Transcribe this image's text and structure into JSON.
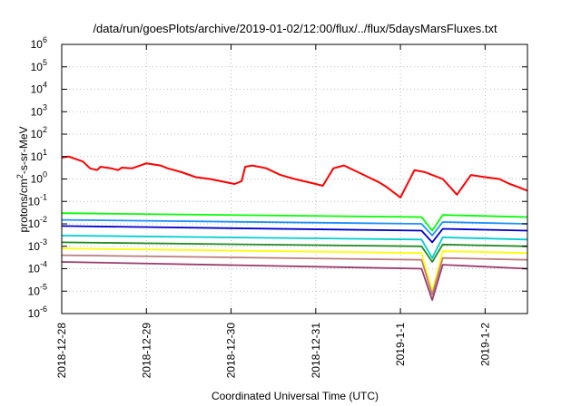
{
  "chart_data": {
    "type": "line",
    "title": "/data/run/goesPlots/archive/2019-01-02/12:00/flux/../flux/5daysMarsFluxes.txt",
    "xlabel": "Coordinated Universal Time (UTC)",
    "ylabel_parts": {
      "base": "protons/cm",
      "exp": "2",
      "rest": "-s-sr-MeV"
    },
    "y_scale": "log",
    "ylim": [
      1e-06,
      1000000.0
    ],
    "y_ticks": [
      {
        "base": "10",
        "exp": "-6",
        "value": 1e-06
      },
      {
        "base": "10",
        "exp": "-5",
        "value": 1e-05
      },
      {
        "base": "10",
        "exp": "-4",
        "value": 0.0001
      },
      {
        "base": "10",
        "exp": "-3",
        "value": 0.001
      },
      {
        "base": "10",
        "exp": "-2",
        "value": 0.01
      },
      {
        "base": "10",
        "exp": "-1",
        "value": 0.1
      },
      {
        "base": "10",
        "exp": "0",
        "value": 1
      },
      {
        "base": "10",
        "exp": "1",
        "value": 10
      },
      {
        "base": "10",
        "exp": "2",
        "value": 100
      },
      {
        "base": "10",
        "exp": "3",
        "value": 1000
      },
      {
        "base": "10",
        "exp": "4",
        "value": 10000
      },
      {
        "base": "10",
        "exp": "5",
        "value": 100000
      },
      {
        "base": "10",
        "exp": "6",
        "value": 1000000
      }
    ],
    "xlim": [
      "2018-12-28",
      "2019-01-02 12:00"
    ],
    "x_ticks": [
      "2018-12-28",
      "2018-12-29",
      "2018-12-30",
      "2018-12-31",
      "2019-1-1",
      "2019-1-2"
    ],
    "grid": true,
    "series": [
      {
        "color": "#ff0000",
        "x": [
          "2018-12-28 00:00",
          "2018-12-28 02:00",
          "2018-12-28 06:00",
          "2018-12-28 08:00",
          "2018-12-28 10:00",
          "2018-12-28 11:00",
          "2018-12-28 14:00",
          "2018-12-28 16:00",
          "2018-12-28 17:00",
          "2018-12-28 20:00",
          "2018-12-29 00:00",
          "2018-12-29 04:00",
          "2018-12-29 06:00",
          "2018-12-29 10:00",
          "2018-12-29 14:00",
          "2018-12-29 18:00",
          "2018-12-29 21:00",
          "2018-12-30 01:00",
          "2018-12-30 03:00",
          "2018-12-30 04:00",
          "2018-12-30 06:00",
          "2018-12-30 10:00",
          "2018-12-30 14:00",
          "2018-12-30 18:00",
          "2018-12-31 00:00",
          "2018-12-31 02:00",
          "2018-12-31 05:00",
          "2018-12-31 08:00",
          "2018-12-31 12:00",
          "2018-12-31 18:00",
          "2018-12-31 20:00",
          "2019-01-01 00:00",
          "2019-01-01 04:00",
          "2019-01-01 07:00",
          "2019-01-01 09:00",
          "2019-01-01 12:00",
          "2019-01-01 14:00",
          "2019-01-01 16:00",
          "2019-01-01 20:00",
          "2019-01-02 00:00",
          "2019-01-02 04:00",
          "2019-01-02 07:00",
          "2019-01-02 10:00",
          "2019-01-02 12:00"
        ],
        "y": [
          9,
          10,
          6,
          3,
          2.5,
          3.5,
          3,
          2.5,
          3.2,
          3,
          5,
          4,
          3,
          2,
          1.2,
          1,
          0.8,
          0.6,
          0.8,
          3.5,
          4,
          3,
          1.5,
          1,
          0.6,
          0.5,
          3,
          4,
          2,
          0.7,
          0.45,
          0.15,
          2.5,
          2,
          1.5,
          1,
          0.45,
          0.2,
          1.5,
          1.2,
          1,
          0.6,
          0.4,
          0.3
        ]
      },
      {
        "color": "#00ff00",
        "x": [
          "2018-12-28 00:00",
          "2019-01-01 06:00",
          "2019-01-01 09:00",
          "2019-01-01 12:00",
          "2019-01-02 12:00"
        ],
        "y": [
          0.03,
          0.02,
          0.005,
          0.025,
          0.02
        ]
      },
      {
        "color": "#1e90ff",
        "x": [
          "2018-12-28 00:00",
          "2019-01-01 06:00",
          "2019-01-01 09:00",
          "2019-01-01 12:00",
          "2019-01-02 12:00"
        ],
        "y": [
          0.015,
          0.01,
          0.003,
          0.012,
          0.01
        ]
      },
      {
        "color": "#0000cd",
        "x": [
          "2018-12-28 00:00",
          "2019-01-01 06:00",
          "2019-01-01 09:00",
          "2019-01-01 12:00",
          "2019-01-02 12:00"
        ],
        "y": [
          0.008,
          0.005,
          0.0015,
          0.006,
          0.005
        ]
      },
      {
        "color": "#00ced1",
        "x": [
          "2018-12-28 00:00",
          "2019-01-01 06:00",
          "2019-01-01 09:00",
          "2019-01-01 12:00",
          "2019-01-02 12:00"
        ],
        "y": [
          0.003,
          0.002,
          0.0003,
          0.0025,
          0.002
        ]
      },
      {
        "color": "#228b22",
        "x": [
          "2018-12-28 00:00",
          "2019-01-01 06:00",
          "2019-01-01 09:00",
          "2019-01-01 12:00",
          "2019-01-02 12:00"
        ],
        "y": [
          0.0015,
          0.001,
          0.0002,
          0.0012,
          0.001
        ]
      },
      {
        "color": "#ffff00",
        "x": [
          "2018-12-28 00:00",
          "2019-01-01 06:00",
          "2019-01-01 09:00",
          "2019-01-01 12:00",
          "2019-01-02 12:00"
        ],
        "y": [
          0.0008,
          0.0005,
          1e-05,
          0.0006,
          0.0005
        ]
      },
      {
        "color": "#bd7c7c",
        "x": [
          "2018-12-28 00:00",
          "2019-01-01 06:00",
          "2019-01-01 09:00",
          "2019-01-01 12:00",
          "2019-01-02 12:00"
        ],
        "y": [
          0.0004,
          0.00025,
          7e-06,
          0.0003,
          0.00025
        ]
      },
      {
        "color": "#9b3b6b",
        "x": [
          "2018-12-28 00:00",
          "2019-01-01 06:00",
          "2019-01-01 09:00",
          "2019-01-01 12:00",
          "2019-01-02 12:00"
        ],
        "y": [
          0.0002,
          0.0001,
          4e-06,
          0.00015,
          0.0001
        ]
      }
    ]
  }
}
